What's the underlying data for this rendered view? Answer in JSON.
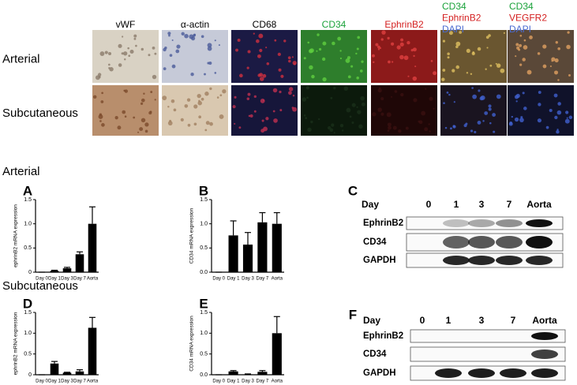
{
  "micrographs": {
    "row_labels": [
      "Arterial",
      "Subcutaneous"
    ],
    "column_labels": [
      [
        {
          "text": "vWF",
          "color": "#000000"
        }
      ],
      [
        {
          "text": "α-actin",
          "color": "#000000"
        }
      ],
      [
        {
          "text": "CD68",
          "color": "#000000"
        }
      ],
      [
        {
          "text": "CD34",
          "color": "#1aa23a"
        }
      ],
      [
        {
          "text": "EphrinB2",
          "color": "#d42020"
        }
      ],
      [
        {
          "text": "CD34",
          "color": "#1aa23a"
        },
        {
          "text": "EphrinB2",
          "color": "#d42020"
        },
        {
          "text": "DAPI",
          "color": "#4a6ad0"
        }
      ],
      [
        {
          "text": "CD34",
          "color": "#1aa23a"
        },
        {
          "text": "VEGFR2",
          "color": "#d42020"
        },
        {
          "text": "DAPI",
          "color": "#4a6ad0"
        }
      ]
    ]
  },
  "sections": [
    "Arterial",
    "Subcutaneous"
  ],
  "chart_data": [
    {
      "type": "bar",
      "panel": "A",
      "y_label": "ephrinB2 mRNA expression",
      "color": "#000000",
      "categories": [
        "Day 0",
        "Day 1",
        "Day 3",
        "Day 7",
        "Aorta"
      ],
      "values": [
        0,
        0.03,
        0.08,
        0.37,
        1.0
      ],
      "errors": [
        0,
        0.01,
        0.02,
        0.05,
        0.35
      ],
      "ylim": [
        0,
        1.5
      ],
      "yticks": [
        0,
        0.5,
        {
          "value": 1,
          "label": "1.0"
        },
        1.5
      ]
    },
    {
      "type": "bar",
      "panel": "B",
      "y_label": "CD34 mRNA expression",
      "color": "#000000",
      "categories": [
        "Day 0",
        "Day 1",
        "Day 3",
        "Day 7",
        "Aorta"
      ],
      "values": [
        0,
        0.76,
        0.57,
        1.03,
        1.0
      ],
      "errors": [
        0,
        0.3,
        0.25,
        0.2,
        0.23
      ],
      "ylim": [
        0,
        1.5
      ],
      "yticks": [
        {
          "value": 0,
          "label": "0.0"
        },
        0.5,
        {
          "value": 1,
          "label": "1.0"
        },
        1.5
      ]
    },
    {
      "type": "bar",
      "panel": "D",
      "y_label": "ephrinB2 mRNA expression",
      "color": "#000000",
      "categories": [
        "Day 0",
        "Day 1",
        "Day 3",
        "Day 7",
        "Aorta"
      ],
      "values": [
        0,
        0.27,
        0.05,
        0.08,
        1.13
      ],
      "errors": [
        0,
        0.05,
        0.01,
        0.04,
        0.25
      ],
      "ylim": [
        0,
        1.5
      ],
      "yticks": [
        0,
        0.5,
        {
          "value": 1,
          "label": "1.0"
        },
        1.5
      ]
    },
    {
      "type": "bar",
      "panel": "E",
      "y_label": "CD34 mRNA expression",
      "color": "#000000",
      "categories": [
        "Day 0",
        "Day 1",
        "Day 3",
        "Day 7",
        "Aorta"
      ],
      "values": [
        0,
        0.08,
        0.01,
        0.07,
        1.0
      ],
      "errors": [
        0,
        0.02,
        0.01,
        0.03,
        0.4
      ],
      "ylim": [
        0,
        1.5
      ],
      "yticks": [
        {
          "value": 0,
          "label": "0.0"
        },
        0.5,
        {
          "value": 1,
          "label": "1.0"
        },
        1.5
      ]
    }
  ],
  "blots": [
    {
      "panel": "C",
      "header": "Day",
      "lanes": [
        "0",
        "1",
        "3",
        "7",
        "Aorta"
      ],
      "rows": [
        "EphrinB2",
        "CD34",
        "GAPDH"
      ]
    },
    {
      "panel": "F",
      "header": "Day",
      "lanes": [
        "0",
        "1",
        "3",
        "7",
        "Aorta"
      ],
      "rows": [
        "EphrinB2",
        "CD34",
        "GAPDH"
      ]
    }
  ]
}
